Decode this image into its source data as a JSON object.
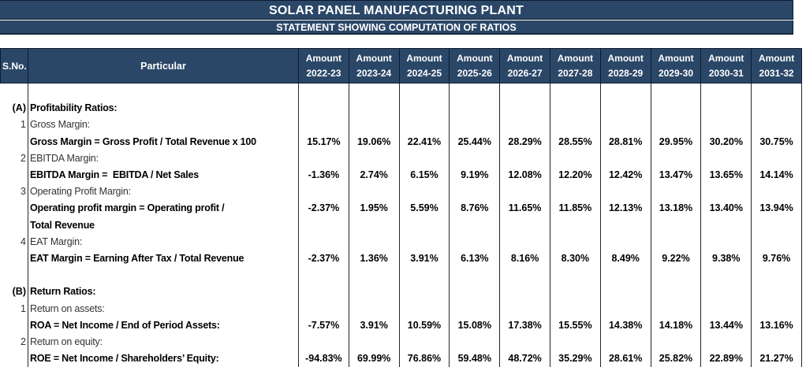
{
  "title": "SOLAR PANEL MANUFACTURING PLANT",
  "subtitle": "STATEMENT SHOWING COMPUTATION OF RATIOS",
  "colors": {
    "banner_bg": "#2B4768",
    "banner_text": "#FFFFFF",
    "header_bg": "#2B4768",
    "header_text": "#FFFFFF",
    "grid_line": "#262626",
    "body_text": "#000000"
  },
  "table": {
    "sno_header": "S.No.",
    "particular_header": "Particular",
    "amount_label": "Amount",
    "years": [
      "2022-23",
      "2023-24",
      "2024-25",
      "2025-26",
      "2026-27",
      "2027-28",
      "2028-29",
      "2029-30",
      "2030-31",
      "2031-32"
    ],
    "rows": [
      {
        "sno": "",
        "particular": "",
        "bold": false,
        "values": null
      },
      {
        "sno": "(A)",
        "particular": "Profitability Ratios:",
        "bold": true,
        "values": null
      },
      {
        "sno": "1",
        "particular": "Gross Margin:",
        "bold": false,
        "values": null
      },
      {
        "sno": "",
        "particular": "Gross Margin = Gross Profit / Total Revenue x 100",
        "bold": true,
        "values": [
          "15.17%",
          "19.06%",
          "22.41%",
          "25.44%",
          "28.29%",
          "28.55%",
          "28.81%",
          "29.95%",
          "30.20%",
          "30.75%"
        ]
      },
      {
        "sno": "2",
        "particular": "EBITDA Margin:",
        "bold": false,
        "values": null
      },
      {
        "sno": "",
        "particular": "EBITDA Margin =  EBITDA / Net Sales",
        "bold": true,
        "values": [
          "-1.36%",
          "2.74%",
          "6.15%",
          "9.19%",
          "12.08%",
          "12.20%",
          "12.42%",
          "13.47%",
          "13.65%",
          "14.14%"
        ]
      },
      {
        "sno": "3",
        "particular": "Operating Profit Margin:",
        "bold": false,
        "values": null
      },
      {
        "sno": "",
        "particular": "Operating profit margin = Operating profit /",
        "bold": true,
        "values": [
          "-2.37%",
          "1.95%",
          "5.59%",
          "8.76%",
          "11.65%",
          "11.85%",
          "12.13%",
          "13.18%",
          "13.40%",
          "13.94%"
        ]
      },
      {
        "sno": "",
        "particular": "Total Revenue",
        "bold": true,
        "values": null
      },
      {
        "sno": "4",
        "particular": "EAT Margin:",
        "bold": false,
        "values": null
      },
      {
        "sno": "",
        "particular": "EAT Margin = Earning After Tax / Total Revenue",
        "bold": true,
        "values": [
          "-2.37%",
          "1.36%",
          "3.91%",
          "6.13%",
          "8.16%",
          "8.30%",
          "8.49%",
          "9.22%",
          "9.38%",
          "9.76%"
        ]
      },
      {
        "sno": "",
        "particular": "",
        "bold": false,
        "values": null
      },
      {
        "sno": "(B)",
        "particular": "Return Ratios:",
        "bold": true,
        "values": null
      },
      {
        "sno": "1",
        "particular": "Return on assets:",
        "bold": false,
        "values": null
      },
      {
        "sno": "",
        "particular": "ROA = Net Income / End of Period Assets:",
        "bold": true,
        "values": [
          "-7.57%",
          "3.91%",
          "10.59%",
          "15.08%",
          "17.38%",
          "15.55%",
          "14.38%",
          "14.18%",
          "13.44%",
          "13.16%"
        ]
      },
      {
        "sno": "2",
        "particular": "Return on equity:",
        "bold": false,
        "values": null
      },
      {
        "sno": "",
        "particular": "ROE = Net Income / Shareholders’ Equity:",
        "bold": true,
        "values": [
          "-94.83%",
          "69.99%",
          "76.86%",
          "59.48%",
          "48.72%",
          "35.29%",
          "28.61%",
          "25.82%",
          "22.89%",
          "21.27%"
        ]
      }
    ]
  }
}
